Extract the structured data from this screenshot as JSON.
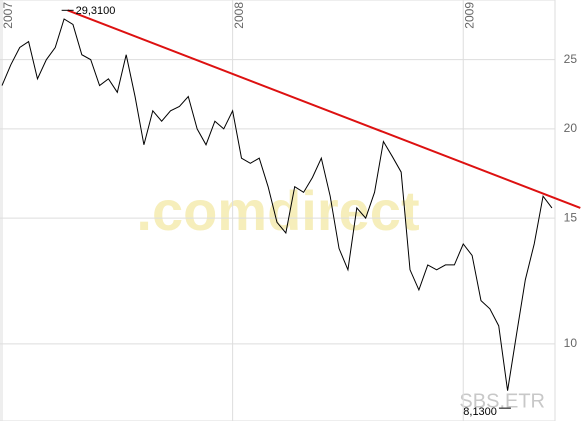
{
  "chart_data": {
    "type": "line",
    "categories": [
      "2007",
      null,
      null,
      null,
      null,
      null,
      null,
      null,
      null,
      null,
      null,
      null,
      null,
      null,
      null,
      null,
      null,
      null,
      null,
      null,
      null,
      null,
      null,
      null,
      null,
      null,
      "2008",
      null,
      null,
      null,
      null,
      null,
      null,
      null,
      null,
      null,
      null,
      null,
      null,
      null,
      null,
      null,
      null,
      null,
      null,
      null,
      null,
      null,
      null,
      null,
      null,
      null,
      "2009",
      null,
      null,
      null,
      null,
      null,
      null,
      null,
      null,
      null,
      null
    ],
    "series": [
      {
        "color": "#000000",
        "values": [
          23,
          24.6,
          26,
          26.5,
          23.5,
          25,
          26,
          28.5,
          28,
          25.4,
          25,
          23,
          23.5,
          22.5,
          25.4,
          22.2,
          19,
          21.2,
          20.5,
          21.2,
          21.5,
          22.2,
          20,
          19,
          20.5,
          20,
          21.2,
          18.2,
          17.9,
          18.2,
          16.6,
          14.8,
          14.3,
          16.6,
          16.3,
          17.1,
          18.2,
          16.1,
          13.6,
          12.7,
          15.5,
          15,
          16.3,
          19.2,
          18.3,
          17.4,
          12.7,
          11.9,
          12.9,
          12.7,
          12.9,
          12.9,
          13.8,
          13.3,
          11.5,
          11.2,
          10.6,
          8.6,
          10.3,
          12.3,
          13.8,
          16.1,
          15.5
        ]
      }
    ],
    "trend_line": {
      "color": "#dd1111",
      "x": [
        7.4,
        65.2
      ],
      "values": [
        29.31,
        15.5
      ]
    },
    "annotations": [
      {
        "text": "29,3100",
        "x": 7.4,
        "value": 29.31
      },
      {
        "text": "8,1300",
        "x": 56.7,
        "value": 8.13
      }
    ],
    "watermark": ".comdirect",
    "symbol": "SBS.ETR",
    "log_scale": true,
    "grid": true,
    "ylim": [
      7.8,
      30.3
    ],
    "yticks": [
      10,
      15,
      20,
      25
    ]
  }
}
